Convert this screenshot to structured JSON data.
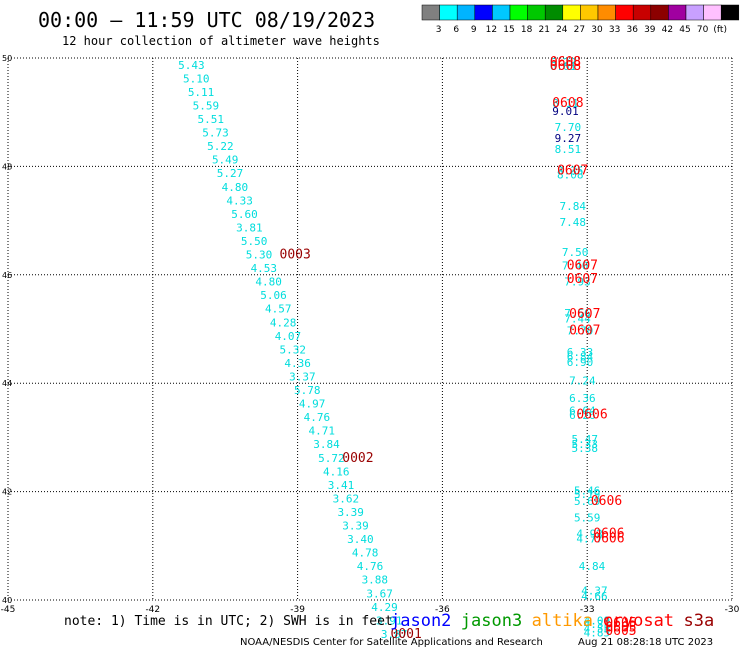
{
  "header": {
    "title": "00:00 – 11:59 UTC 08/19/2023",
    "subtitle": "12 hour collection of altimeter wave heights"
  },
  "colorbar": {
    "labels": [
      "3",
      "6",
      "9",
      "12",
      "15",
      "18",
      "21",
      "24",
      "27",
      "30",
      "33",
      "36",
      "39",
      "42",
      "45",
      "70",
      "(ft)"
    ],
    "colors": [
      "#808080",
      "#00ffff",
      "#00b4ff",
      "#0000ff",
      "#00c8ff",
      "#00ff00",
      "#00c800",
      "#008c00",
      "#ffff00",
      "#ffc800",
      "#ff8c00",
      "#ff0000",
      "#c80000",
      "#8c0000",
      "#a000a0",
      "#c8a0ff",
      "#ffc0ff",
      "#000000"
    ]
  },
  "footer": {
    "note": "note: 1) Time is in UTC; 2) SWH is in feet",
    "legend": [
      {
        "name": "jason2",
        "color": "#0000ff"
      },
      {
        "name": "jason3",
        "color": "#009900"
      },
      {
        "name": "altika",
        "color": "#ff9900"
      },
      {
        "name": "cryosat",
        "color": "#ff0000"
      },
      {
        "name": "s3a",
        "color": "#990000"
      }
    ],
    "credit": "NOAA/NESDIS Center for Satellite Applications and Research",
    "timestamp": "Aug 21 08:28:18 UTC 2023"
  },
  "chart_data": {
    "type": "scatter",
    "xlim": [
      -45,
      -30
    ],
    "ylim": [
      40,
      50
    ],
    "xticks": [
      -45,
      -42,
      -39,
      -36,
      -33,
      -30
    ],
    "yticks": [
      40,
      42,
      44,
      46,
      48,
      50
    ],
    "grid": true,
    "colors": {
      "cyan": "#00dddd",
      "navy": "#000080",
      "red": "#ff0000",
      "maroon": "#990000"
    },
    "points": [
      {
        "x": -41.2,
        "y": 49.8,
        "t": "5.43",
        "c": "cyan"
      },
      {
        "x": -41.1,
        "y": 49.55,
        "t": "5.10",
        "c": "cyan"
      },
      {
        "x": -41.0,
        "y": 49.3,
        "t": "5.11",
        "c": "cyan"
      },
      {
        "x": -40.9,
        "y": 49.05,
        "t": "5.59",
        "c": "cyan"
      },
      {
        "x": -40.8,
        "y": 48.8,
        "t": "5.51",
        "c": "cyan"
      },
      {
        "x": -40.7,
        "y": 48.55,
        "t": "5.73",
        "c": "cyan"
      },
      {
        "x": -40.6,
        "y": 48.3,
        "t": "5.22",
        "c": "cyan"
      },
      {
        "x": -40.5,
        "y": 48.05,
        "t": "5.49",
        "c": "cyan"
      },
      {
        "x": -40.4,
        "y": 47.8,
        "t": "5.27",
        "c": "cyan"
      },
      {
        "x": -40.3,
        "y": 47.55,
        "t": "4.80",
        "c": "cyan"
      },
      {
        "x": -40.2,
        "y": 47.3,
        "t": "4.33",
        "c": "cyan"
      },
      {
        "x": -40.1,
        "y": 47.05,
        "t": "5.60",
        "c": "cyan"
      },
      {
        "x": -40.0,
        "y": 46.8,
        "t": "3.81",
        "c": "cyan"
      },
      {
        "x": -39.9,
        "y": 46.55,
        "t": "5.50",
        "c": "cyan"
      },
      {
        "x": -39.8,
        "y": 46.3,
        "t": "5.30",
        "c": "cyan"
      },
      {
        "x": -39.7,
        "y": 46.05,
        "t": "4.53",
        "c": "cyan"
      },
      {
        "x": -39.6,
        "y": 45.8,
        "t": "4.80",
        "c": "cyan"
      },
      {
        "x": -39.5,
        "y": 45.55,
        "t": "5.06",
        "c": "cyan"
      },
      {
        "x": -39.4,
        "y": 45.3,
        "t": "4.57",
        "c": "cyan"
      },
      {
        "x": -39.3,
        "y": 45.05,
        "t": "4.28",
        "c": "cyan"
      },
      {
        "x": -39.2,
        "y": 44.8,
        "t": "4.07",
        "c": "cyan"
      },
      {
        "x": -39.1,
        "y": 44.55,
        "t": "5.32",
        "c": "cyan"
      },
      {
        "x": -39.0,
        "y": 44.3,
        "t": "4.36",
        "c": "cyan"
      },
      {
        "x": -38.9,
        "y": 44.05,
        "t": "3.37",
        "c": "cyan"
      },
      {
        "x": -38.8,
        "y": 43.8,
        "t": "5.78",
        "c": "cyan"
      },
      {
        "x": -38.7,
        "y": 43.55,
        "t": "4.97",
        "c": "cyan"
      },
      {
        "x": -38.6,
        "y": 43.3,
        "t": "4.76",
        "c": "cyan"
      },
      {
        "x": -38.5,
        "y": 43.05,
        "t": "4.71",
        "c": "cyan"
      },
      {
        "x": -38.4,
        "y": 42.8,
        "t": "3.84",
        "c": "cyan"
      },
      {
        "x": -38.3,
        "y": 42.55,
        "t": "5.72",
        "c": "cyan"
      },
      {
        "x": -38.2,
        "y": 42.3,
        "t": "4.16",
        "c": "cyan"
      },
      {
        "x": -38.1,
        "y": 42.05,
        "t": "3.41",
        "c": "cyan"
      },
      {
        "x": -38.0,
        "y": 41.8,
        "t": "3.62",
        "c": "cyan"
      },
      {
        "x": -37.9,
        "y": 41.55,
        "t": "3.39",
        "c": "cyan"
      },
      {
        "x": -37.8,
        "y": 41.3,
        "t": "3.39",
        "c": "cyan"
      },
      {
        "x": -37.7,
        "y": 41.05,
        "t": "3.40",
        "c": "cyan"
      },
      {
        "x": -37.6,
        "y": 40.8,
        "t": "4.78",
        "c": "cyan"
      },
      {
        "x": -37.5,
        "y": 40.55,
        "t": "4.76",
        "c": "cyan"
      },
      {
        "x": -37.4,
        "y": 40.3,
        "t": "3.88",
        "c": "cyan"
      },
      {
        "x": -37.3,
        "y": 40.05,
        "t": "3.67",
        "c": "cyan"
      },
      {
        "x": -37.2,
        "y": 39.8,
        "t": "4.29",
        "c": "cyan"
      },
      {
        "x": -37.1,
        "y": 39.55,
        "t": "3.91",
        "c": "cyan"
      },
      {
        "x": -37.0,
        "y": 39.3,
        "t": "3.87",
        "c": "cyan"
      },
      {
        "x": -33.5,
        "y": 49.85,
        "t": "6.22",
        "c": "cyan"
      },
      {
        "x": -33.5,
        "y": 49.78,
        "t": "6.61",
        "c": "cyan"
      },
      {
        "x": -33.45,
        "y": 49.1,
        "t": "8.11",
        "c": "cyan"
      },
      {
        "x": -33.45,
        "y": 48.95,
        "t": "9.01",
        "c": "navy"
      },
      {
        "x": -33.4,
        "y": 48.65,
        "t": "7.70",
        "c": "cyan"
      },
      {
        "x": -33.4,
        "y": 48.45,
        "t": "9.27",
        "c": "navy"
      },
      {
        "x": -33.4,
        "y": 48.25,
        "t": "8.51",
        "c": "cyan"
      },
      {
        "x": -33.35,
        "y": 47.85,
        "t": "8.35",
        "c": "cyan"
      },
      {
        "x": -33.35,
        "y": 47.78,
        "t": "8.08",
        "c": "cyan"
      },
      {
        "x": -33.3,
        "y": 47.2,
        "t": "7.84",
        "c": "cyan"
      },
      {
        "x": -33.3,
        "y": 46.9,
        "t": "7.48",
        "c": "cyan"
      },
      {
        "x": -33.25,
        "y": 46.35,
        "t": "7.50",
        "c": "cyan"
      },
      {
        "x": -33.25,
        "y": 46.1,
        "t": "7.40",
        "c": "cyan"
      },
      {
        "x": -33.2,
        "y": 45.8,
        "t": "7.93",
        "c": "cyan"
      },
      {
        "x": -33.2,
        "y": 45.22,
        "t": "7.56",
        "c": "cyan"
      },
      {
        "x": -33.2,
        "y": 45.12,
        "t": "7.44",
        "c": "cyan"
      },
      {
        "x": -33.15,
        "y": 44.9,
        "t": "7.70",
        "c": "cyan"
      },
      {
        "x": -33.15,
        "y": 44.5,
        "t": "6.33",
        "c": "cyan"
      },
      {
        "x": -33.15,
        "y": 44.42,
        "t": "6.84",
        "c": "cyan"
      },
      {
        "x": -33.15,
        "y": 44.32,
        "t": "6.90",
        "c": "cyan"
      },
      {
        "x": -33.1,
        "y": 43.98,
        "t": "7.24",
        "c": "cyan"
      },
      {
        "x": -33.1,
        "y": 43.65,
        "t": "6.36",
        "c": "cyan"
      },
      {
        "x": -33.1,
        "y": 43.42,
        "t": "6.04",
        "c": "cyan"
      },
      {
        "x": -33.1,
        "y": 43.34,
        "t": "6.26",
        "c": "cyan"
      },
      {
        "x": -33.05,
        "y": 42.9,
        "t": "5.47",
        "c": "cyan"
      },
      {
        "x": -33.05,
        "y": 42.8,
        "t": "5.33",
        "c": "cyan"
      },
      {
        "x": -33.05,
        "y": 42.73,
        "t": "5.38",
        "c": "cyan"
      },
      {
        "x": -33.0,
        "y": 41.95,
        "t": "5.46",
        "c": "cyan"
      },
      {
        "x": -33.0,
        "y": 41.88,
        "t": "5.19",
        "c": "cyan"
      },
      {
        "x": -33.0,
        "y": 41.75,
        "t": "5.69",
        "c": "cyan"
      },
      {
        "x": -33.0,
        "y": 41.45,
        "t": "5.59",
        "c": "cyan"
      },
      {
        "x": -32.95,
        "y": 41.15,
        "t": "4.92",
        "c": "cyan"
      },
      {
        "x": -32.95,
        "y": 41.06,
        "t": "4.77",
        "c": "cyan"
      },
      {
        "x": -32.9,
        "y": 40.55,
        "t": "4.84",
        "c": "cyan"
      },
      {
        "x": -32.85,
        "y": 40.1,
        "t": "4.37",
        "c": "cyan"
      },
      {
        "x": -32.85,
        "y": 40.0,
        "t": "4.66",
        "c": "cyan"
      },
      {
        "x": -32.8,
        "y": 39.55,
        "t": "4.09",
        "c": "cyan"
      },
      {
        "x": -32.8,
        "y": 39.48,
        "t": "4.31",
        "c": "cyan"
      },
      {
        "x": -32.8,
        "y": 39.4,
        "t": "4.55",
        "c": "cyan"
      },
      {
        "x": -32.8,
        "y": 39.33,
        "t": "4.85",
        "c": "cyan"
      },
      {
        "x": -33.45,
        "y": 49.85,
        "t": "0608",
        "c": "red"
      },
      {
        "x": -33.45,
        "y": 49.78,
        "t": "0608",
        "c": "red"
      },
      {
        "x": -33.4,
        "y": 49.1,
        "t": "0608",
        "c": "red"
      },
      {
        "x": -33.3,
        "y": 47.85,
        "t": "0607",
        "c": "red"
      },
      {
        "x": -33.1,
        "y": 46.1,
        "t": "0607",
        "c": "red"
      },
      {
        "x": -33.1,
        "y": 45.85,
        "t": "0607",
        "c": "red"
      },
      {
        "x": -33.05,
        "y": 45.2,
        "t": "0607",
        "c": "red"
      },
      {
        "x": -33.05,
        "y": 44.9,
        "t": "0607",
        "c": "red"
      },
      {
        "x": -32.9,
        "y": 43.35,
        "t": "0606",
        "c": "red"
      },
      {
        "x": -32.6,
        "y": 41.75,
        "t": "0606",
        "c": "red"
      },
      {
        "x": -32.55,
        "y": 41.15,
        "t": "0606",
        "c": "red"
      },
      {
        "x": -32.55,
        "y": 41.06,
        "t": "0606",
        "c": "red"
      },
      {
        "x": -32.3,
        "y": 39.5,
        "t": "0605",
        "c": "red"
      },
      {
        "x": -32.3,
        "y": 39.42,
        "t": "0605",
        "c": "red"
      },
      {
        "x": -32.3,
        "y": 39.35,
        "t": "0605",
        "c": "red"
      },
      {
        "x": -39.05,
        "y": 46.3,
        "t": "0003",
        "c": "maroon"
      },
      {
        "x": -37.75,
        "y": 42.55,
        "t": "0002",
        "c": "maroon"
      },
      {
        "x": -36.75,
        "y": 39.3,
        "t": "0001",
        "c": "maroon"
      }
    ]
  }
}
